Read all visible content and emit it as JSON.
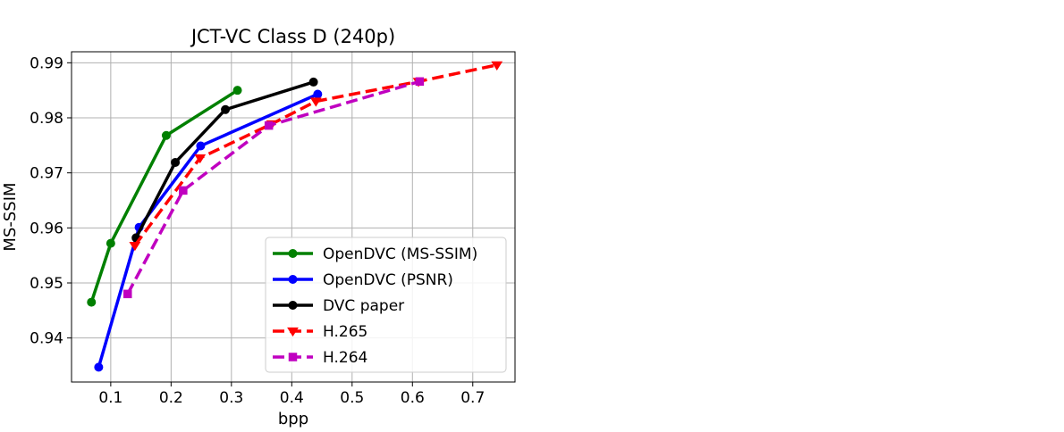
{
  "chart_data": {
    "type": "line",
    "title": "JCT-VC Class D (240p)",
    "xlabel": "bpp",
    "ylabel": "MS-SSIM",
    "xlim": [
      0.035,
      0.77
    ],
    "ylim": [
      0.932,
      0.992
    ],
    "xticks": [
      0.1,
      0.2,
      0.3,
      0.4,
      0.5,
      0.6,
      0.7
    ],
    "xtick_labels": [
      "0.1",
      "0.2",
      "0.3",
      "0.4",
      "0.5",
      "0.6",
      "0.7"
    ],
    "yticks": [
      0.94,
      0.95,
      0.96,
      0.97,
      0.98,
      0.99
    ],
    "ytick_labels": [
      "0.94",
      "0.95",
      "0.96",
      "0.97",
      "0.98",
      "0.99"
    ],
    "grid": true,
    "legend_position": "lower-right",
    "series": [
      {
        "name": "OpenDVC (MS-SSIM)",
        "color": "#008000",
        "line_style": "solid",
        "marker": "circle",
        "x": [
          0.068,
          0.1,
          0.192,
          0.31
        ],
        "y": [
          0.9465,
          0.9572,
          0.9768,
          0.985
        ]
      },
      {
        "name": "OpenDVC (PSNR)",
        "color": "#0000ff",
        "line_style": "solid",
        "marker": "circle",
        "x": [
          0.08,
          0.147,
          0.249,
          0.443
        ],
        "y": [
          0.9347,
          0.9601,
          0.9749,
          0.9843
        ]
      },
      {
        "name": "DVC paper",
        "color": "#000000",
        "line_style": "solid",
        "marker": "circle",
        "x": [
          0.142,
          0.207,
          0.29,
          0.436
        ],
        "y": [
          0.9582,
          0.9719,
          0.9815,
          0.9865
        ]
      },
      {
        "name": "H.265",
        "color": "#ff0000",
        "line_style": "dashed",
        "marker": "triangle-down",
        "x": [
          0.14,
          0.248,
          0.367,
          0.44,
          0.61,
          0.74
        ],
        "y": [
          0.9568,
          0.9727,
          0.9789,
          0.983,
          0.9866,
          0.9896
        ]
      },
      {
        "name": "H.264",
        "color": "#c000c0",
        "line_style": "dashed",
        "marker": "square",
        "x": [
          0.128,
          0.22,
          0.362,
          0.612
        ],
        "y": [
          0.948,
          0.9668,
          0.9786,
          0.9866
        ]
      }
    ]
  }
}
